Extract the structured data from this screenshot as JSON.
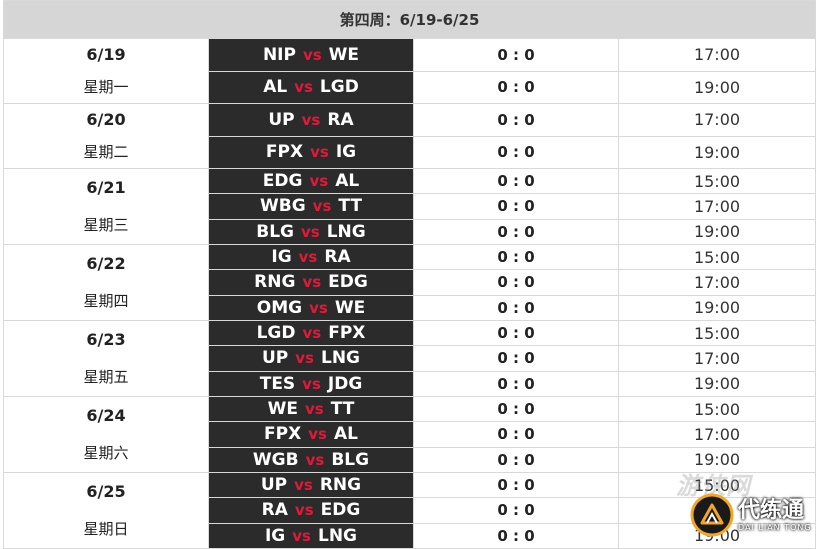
{
  "header": {
    "title": "第四周：6/19-6/25"
  },
  "vs_label": "vs",
  "days": [
    {
      "date": "6/19",
      "weekday": "星期一",
      "matches": [
        {
          "team1": "NIP",
          "team2": "WE",
          "score": "0 : 0",
          "time": "17:00"
        },
        {
          "team1": "AL",
          "team2": "LGD",
          "score": "0 : 0",
          "time": "19:00"
        }
      ]
    },
    {
      "date": "6/20",
      "weekday": "星期二",
      "matches": [
        {
          "team1": "UP",
          "team2": "RA",
          "score": "0 : 0",
          "time": "17:00"
        },
        {
          "team1": "FPX",
          "team2": "IG",
          "score": "0 : 0",
          "time": "19:00"
        }
      ]
    },
    {
      "date": "6/21",
      "weekday": "星期三",
      "matches": [
        {
          "team1": "EDG",
          "team2": "AL",
          "score": "0 : 0",
          "time": "15:00"
        },
        {
          "team1": "WBG",
          "team2": "TT",
          "score": "0 : 0",
          "time": "17:00"
        },
        {
          "team1": "BLG",
          "team2": "LNG",
          "score": "0 : 0",
          "time": "19:00"
        }
      ]
    },
    {
      "date": "6/22",
      "weekday": "星期四",
      "matches": [
        {
          "team1": "IG",
          "team2": "RA",
          "score": "0 : 0",
          "time": "15:00"
        },
        {
          "team1": "RNG",
          "team2": "EDG",
          "score": "0 : 0",
          "time": "17:00"
        },
        {
          "team1": "OMG",
          "team2": "WE",
          "score": "0 : 0",
          "time": "19:00"
        }
      ]
    },
    {
      "date": "6/23",
      "weekday": "星期五",
      "matches": [
        {
          "team1": "LGD",
          "team2": "FPX",
          "score": "0 : 0",
          "time": "15:00"
        },
        {
          "team1": "UP",
          "team2": "LNG",
          "score": "0 : 0",
          "time": "17:00"
        },
        {
          "team1": "TES",
          "team2": "JDG",
          "score": "0 : 0",
          "time": "19:00"
        }
      ]
    },
    {
      "date": "6/24",
      "weekday": "星期六",
      "matches": [
        {
          "team1": "WE",
          "team2": "TT",
          "score": "0 : 0",
          "time": "15:00"
        },
        {
          "team1": "FPX",
          "team2": "AL",
          "score": "0 : 0",
          "time": "17:00"
        },
        {
          "team1": "WGB",
          "team2": "BLG",
          "score": "0 : 0",
          "time": "19:00"
        }
      ]
    },
    {
      "date": "6/25",
      "weekday": "星期日",
      "matches": [
        {
          "team1": "UP",
          "team2": "RNG",
          "score": "0 : 0",
          "time": "15:00"
        },
        {
          "team1": "RA",
          "team2": "EDG",
          "score": "0 : 0",
          "time": ""
        },
        {
          "team1": "IG",
          "team2": "LNG",
          "score": "0 : 0",
          "time": "19:00"
        }
      ]
    }
  ],
  "watermark": {
    "text": "游侠网",
    "logo_main": "代练通",
    "logo_sub": "DAI LIAN TONG"
  },
  "colors": {
    "header_bg": "#d6d6d6",
    "match_bg": "#2b2b2b",
    "vs": "#e01939",
    "logo_accent": "#f5a623"
  }
}
